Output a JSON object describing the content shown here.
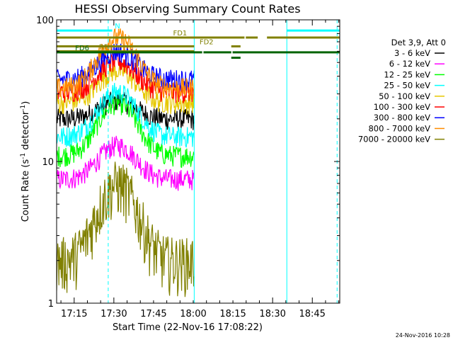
{
  "chart_data": {
    "type": "line",
    "title": "HESSI Observing Summary Count Rates",
    "xlabel": "Start Time (22-Nov-16 17:08:22)",
    "ylabel": "Count Rate (s",
    "ylabel_sup1": "-1",
    "ylabel_mid": " detector",
    "ylabel_sup2": "-1",
    "ylabel_end": ")",
    "y_scale": "log",
    "ylim": [
      1,
      100
    ],
    "x_start_label": "17:08:22",
    "xlim_minutes": [
      0,
      107
    ],
    "xticks": [
      {
        "label": "17:15",
        "min": 6.63
      },
      {
        "label": "17:30",
        "min": 21.63
      },
      {
        "label": "17:45",
        "min": 36.63
      },
      {
        "label": "18:00",
        "min": 51.63
      },
      {
        "label": "18:15",
        "min": 66.63
      },
      {
        "label": "18:30",
        "min": 81.63
      },
      {
        "label": "18:45",
        "min": 96.63
      }
    ],
    "yticks": [
      {
        "label": "1",
        "value": 1
      },
      {
        "label": "10",
        "value": 10
      },
      {
        "label": "100",
        "value": 100
      }
    ],
    "legend_header": "Det 3,9, Att 0",
    "legend_position": "right",
    "series": [
      {
        "name": "3 - 6 keV",
        "color": "#000000",
        "base": 20,
        "peak": 27
      },
      {
        "name": "6 - 12 keV",
        "color": "#ff00ff",
        "base": 7.5,
        "peak": 13
      },
      {
        "name": "12 - 25 keV",
        "color": "#00ff00",
        "base": 11,
        "peak": 26
      },
      {
        "name": "25 - 50 keV",
        "color": "#00ffff",
        "base": 15,
        "peak": 31
      },
      {
        "name": "50 - 100 keV",
        "color": "#e6c800",
        "base": 26,
        "peak": 44
      },
      {
        "name": "100 - 300 keV",
        "color": "#ff0000",
        "base": 31,
        "peak": 51
      },
      {
        "name": "300 - 800 keV",
        "color": "#0000ff",
        "base": 38,
        "peak": 60
      },
      {
        "name": "800 - 7000 keV",
        "color": "#ff8c00",
        "base": 33,
        "peak": 75
      },
      {
        "name": "7000 - 20000 keV",
        "color": "#808000",
        "base": 2,
        "peak": 7
      }
    ],
    "data_gap_after_min": 52,
    "flags": [
      {
        "label": "N",
        "color": "#00ffff",
        "value": 84,
        "segments": [
          [
            0,
            21
          ]
        ],
        "label_at": 22
      },
      {
        "label": "FD1",
        "color": "#808000",
        "value": 75,
        "segments": [
          [
            0,
            71
          ],
          [
            71.5,
            76
          ],
          [
            79.5,
            107
          ]
        ],
        "label_at": 44
      },
      {
        "label": "FD2",
        "color": "#808000",
        "value": 65,
        "segments": [
          [
            0,
            52
          ],
          [
            66,
            69.5
          ]
        ],
        "label_at": 54
      },
      {
        "label": "RF",
        "color": "#808000",
        "value": 60,
        "segments": [
          [
            0,
            52
          ]
        ],
        "label_at": 16
      },
      {
        "label": "FD6",
        "color": "#006400",
        "value": 59,
        "segments": [
          [
            0,
            55
          ],
          [
            55.5,
            66
          ],
          [
            66.5,
            107
          ]
        ],
        "label_at": 7
      },
      {
        "label": "",
        "color": "#00ffff",
        "value": 84,
        "segments": [
          [
            87,
            107
          ]
        ],
        "label_at": 0
      },
      {
        "label": "",
        "color": "#006400",
        "value": 54,
        "segments": [
          [
            66,
            69.5
          ]
        ],
        "label_at": 0
      }
    ],
    "vlines": [
      {
        "min": 0,
        "color": "#00ffff",
        "dashed": false
      },
      {
        "min": 19.5,
        "color": "#00ffff",
        "dashed": true
      },
      {
        "min": 52,
        "color": "#00ffff",
        "dashed": false
      },
      {
        "min": 87,
        "color": "#00ffff",
        "dashed": false
      },
      {
        "min": 106,
        "color": "#00ffff",
        "dashed": true
      }
    ]
  },
  "footer": {
    "generated": "24-Nov-2016 10:28"
  }
}
